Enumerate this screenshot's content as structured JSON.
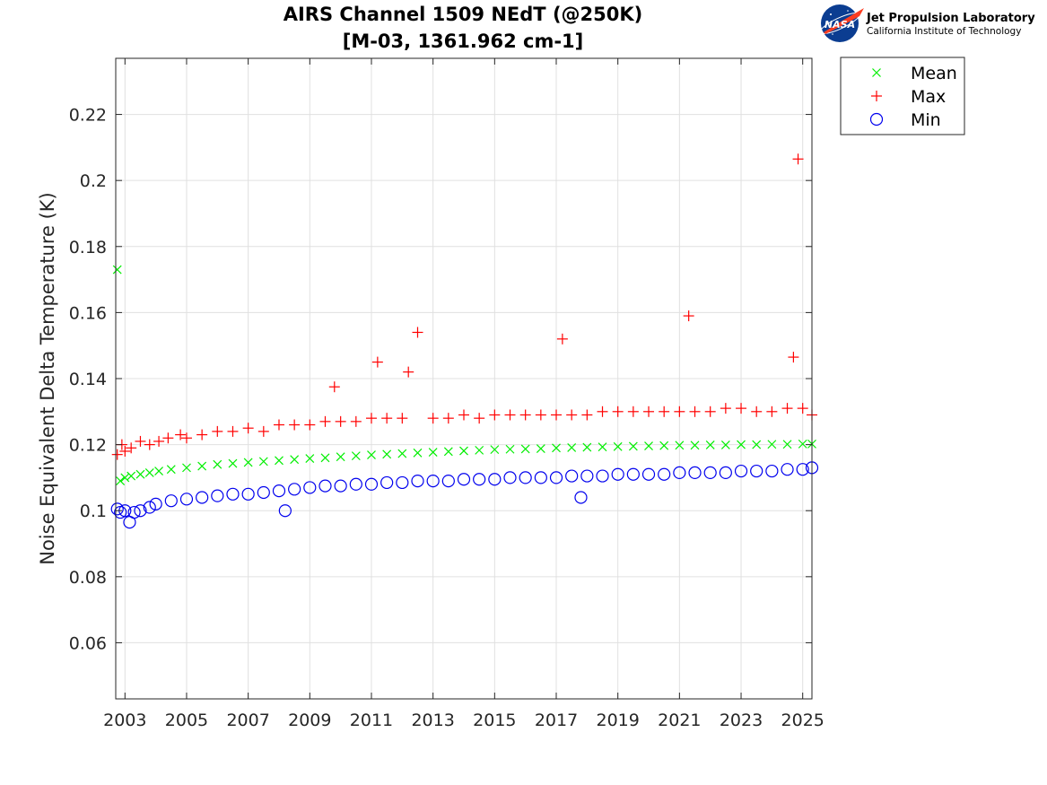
{
  "logo": {
    "badge_text": "NASA",
    "org_name": "Jet Propulsion Laboratory",
    "org_sub": "California Institute of Technology"
  },
  "colors": {
    "mean": "#00ee00",
    "max": "#ff0000",
    "min": "#0000ee",
    "grid": "#e0e0e0",
    "axis": "#262626"
  },
  "chart_data": {
    "type": "scatter",
    "title": "AIRS Channel 1509 NEdT (@250K)",
    "subtitle": "[M-03, 1361.962 cm-1]",
    "xlabel": "",
    "ylabel": "Noise Equivalent Delta Temperature (K)",
    "xlim": [
      2002.7,
      2025.3
    ],
    "ylim": [
      0.043,
      0.237
    ],
    "x_ticks": [
      2003,
      2005,
      2007,
      2009,
      2011,
      2013,
      2015,
      2017,
      2019,
      2021,
      2023,
      2025
    ],
    "x_tick_labels": [
      "2003",
      "2005",
      "2007",
      "2009",
      "2011",
      "2013",
      "2015",
      "2017",
      "2019",
      "2021",
      "2023",
      "2025"
    ],
    "y_ticks": [
      0.06,
      0.08,
      0.1,
      0.12,
      0.14,
      0.16,
      0.18,
      0.2,
      0.22
    ],
    "y_tick_labels": [
      "0.06",
      "0.08",
      "0.1",
      "0.12",
      "0.14",
      "0.16",
      "0.18",
      "0.2",
      "0.22"
    ],
    "grid": true,
    "legend_position": "outside-top-right",
    "series": [
      {
        "name": "Mean",
        "marker": "x",
        "color": "#00ee00",
        "x": [
          2002.75,
          2002.85,
          2003.0,
          2003.2,
          2003.5,
          2003.8,
          2004.1,
          2004.5,
          2005.0,
          2005.5,
          2006.0,
          2006.5,
          2007.0,
          2007.5,
          2008.0,
          2008.5,
          2009.0,
          2009.5,
          2010.0,
          2010.5,
          2011.0,
          2011.5,
          2012.0,
          2012.5,
          2013.0,
          2013.5,
          2014.0,
          2014.5,
          2015.0,
          2015.5,
          2016.0,
          2016.5,
          2017.0,
          2017.5,
          2018.0,
          2018.5,
          2019.0,
          2019.5,
          2020.0,
          2020.5,
          2021.0,
          2021.5,
          2022.0,
          2022.5,
          2023.0,
          2023.5,
          2024.0,
          2024.5,
          2025.0,
          2025.3
        ],
        "y": [
          0.173,
          0.109,
          0.11,
          0.1105,
          0.111,
          0.1115,
          0.112,
          0.1125,
          0.113,
          0.1135,
          0.114,
          0.1143,
          0.1146,
          0.1149,
          0.1152,
          0.1155,
          0.1158,
          0.116,
          0.1163,
          0.1166,
          0.1169,
          0.1171,
          0.1173,
          0.1175,
          0.1177,
          0.1179,
          0.1181,
          0.1183,
          0.1185,
          0.1186,
          0.1187,
          0.1188,
          0.119,
          0.1191,
          0.1192,
          0.1193,
          0.1194,
          0.1195,
          0.1196,
          0.1197,
          0.1198,
          0.1198,
          0.1199,
          0.1199,
          0.12,
          0.12,
          0.1201,
          0.1201,
          0.1202,
          0.1202
        ]
      },
      {
        "name": "Max",
        "marker": "+",
        "color": "#ff0000",
        "x": [
          2002.75,
          2002.9,
          2003.0,
          2003.2,
          2003.5,
          2003.8,
          2004.1,
          2004.4,
          2004.8,
          2005.0,
          2005.5,
          2006.0,
          2006.5,
          2007.0,
          2007.5,
          2008.0,
          2008.5,
          2009.0,
          2009.5,
          2009.8,
          2010.0,
          2010.5,
          2011.0,
          2011.2,
          2011.5,
          2012.0,
          2012.2,
          2012.5,
          2013.0,
          2013.5,
          2014.0,
          2014.5,
          2015.0,
          2015.5,
          2016.0,
          2016.5,
          2017.0,
          2017.2,
          2017.5,
          2018.0,
          2018.5,
          2019.0,
          2019.5,
          2020.0,
          2020.5,
          2021.0,
          2021.3,
          2021.5,
          2022.0,
          2022.5,
          2023.0,
          2023.5,
          2024.0,
          2024.5,
          2024.7,
          2024.85,
          2025.0,
          2025.3
        ],
        "y": [
          0.117,
          0.12,
          0.118,
          0.119,
          0.121,
          0.12,
          0.121,
          0.122,
          0.123,
          0.122,
          0.123,
          0.124,
          0.124,
          0.125,
          0.124,
          0.126,
          0.126,
          0.126,
          0.127,
          0.1375,
          0.127,
          0.127,
          0.128,
          0.145,
          0.128,
          0.128,
          0.142,
          0.154,
          0.128,
          0.128,
          0.129,
          0.128,
          0.129,
          0.129,
          0.129,
          0.129,
          0.129,
          0.152,
          0.129,
          0.129,
          0.13,
          0.13,
          0.13,
          0.13,
          0.13,
          0.13,
          0.159,
          0.13,
          0.13,
          0.131,
          0.131,
          0.13,
          0.13,
          0.131,
          0.1465,
          0.2065,
          0.131,
          0.129
        ]
      },
      {
        "name": "Min",
        "marker": "o",
        "color": "#0000ee",
        "x": [
          2002.75,
          2002.85,
          2003.0,
          2003.15,
          2003.3,
          2003.5,
          2003.8,
          2004.0,
          2004.5,
          2005.0,
          2005.5,
          2006.0,
          2006.5,
          2007.0,
          2007.5,
          2008.0,
          2008.2,
          2008.5,
          2009.0,
          2009.5,
          2010.0,
          2010.5,
          2011.0,
          2011.5,
          2012.0,
          2012.5,
          2013.0,
          2013.5,
          2014.0,
          2014.5,
          2015.0,
          2015.5,
          2016.0,
          2016.5,
          2017.0,
          2017.5,
          2017.8,
          2018.0,
          2018.5,
          2019.0,
          2019.5,
          2020.0,
          2020.5,
          2021.0,
          2021.5,
          2022.0,
          2022.5,
          2023.0,
          2023.5,
          2024.0,
          2024.5,
          2025.0,
          2025.3
        ],
        "y": [
          0.1005,
          0.0995,
          0.1,
          0.0965,
          0.0995,
          0.1,
          0.101,
          0.102,
          0.103,
          0.1035,
          0.104,
          0.1045,
          0.105,
          0.105,
          0.1055,
          0.106,
          0.1,
          0.1065,
          0.107,
          0.1075,
          0.1075,
          0.108,
          0.108,
          0.1085,
          0.1085,
          0.109,
          0.109,
          0.109,
          0.1095,
          0.1095,
          0.1095,
          0.11,
          0.11,
          0.11,
          0.11,
          0.1105,
          0.104,
          0.1105,
          0.1105,
          0.111,
          0.111,
          0.111,
          0.111,
          0.1115,
          0.1115,
          0.1115,
          0.1115,
          0.112,
          0.112,
          0.112,
          0.1125,
          0.1125,
          0.113
        ]
      }
    ]
  }
}
